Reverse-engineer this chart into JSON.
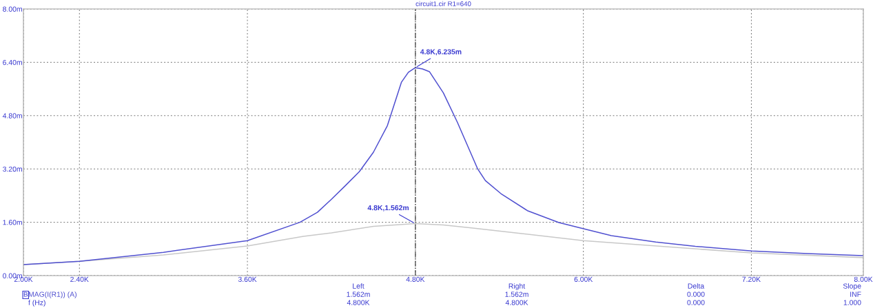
{
  "chart_data": {
    "type": "line",
    "title": "circuit1.cir R1=640",
    "xlabel": "f (Hz)",
    "xlim": [
      2000,
      8000
    ],
    "xticks": [
      {
        "value": 2000,
        "label": "2.00K"
      },
      {
        "value": 2400,
        "label": "2.40K"
      },
      {
        "value": 3600,
        "label": "3.60K"
      },
      {
        "value": 4800,
        "label": "4.80K"
      },
      {
        "value": 6000,
        "label": "6.00K"
      },
      {
        "value": 7200,
        "label": "7.20K"
      },
      {
        "value": 8000,
        "label": "8.00K"
      }
    ],
    "ylim": [
      0,
      8
    ],
    "yticks": [
      {
        "value": 0,
        "label": "0.00m"
      },
      {
        "value": 1.6,
        "label": "1.60m"
      },
      {
        "value": 3.2,
        "label": "3.20m"
      },
      {
        "value": 4.8,
        "label": "4.80m"
      },
      {
        "value": 6.4,
        "label": "6.40m"
      },
      {
        "value": 8,
        "label": "8.00m"
      }
    ],
    "grid": true,
    "line_style": "solid",
    "marker": "none",
    "series": [
      {
        "name": null,
        "color": "#c8c8c8",
        "x": [
          2000,
          2400,
          3000,
          3600,
          4000,
          4200,
          4500,
          4800,
          5000,
          5200,
          5560,
          6000,
          7200,
          8000
        ],
        "values": [
          0.33,
          0.43,
          0.62,
          0.89,
          1.18,
          1.28,
          1.48,
          1.56,
          1.52,
          1.43,
          1.26,
          1.05,
          0.68,
          0.54
        ]
      },
      {
        "name": "MAG(I(R1)) (A)",
        "color": "#5050d0",
        "x": [
          2000,
          2400,
          3000,
          3600,
          3975,
          4100,
          4200,
          4300,
          4400,
          4500,
          4600,
          4700,
          4750,
          4800,
          4850,
          4900,
          5000,
          5100,
          5245,
          5300,
          5417,
          5600,
          5825,
          5997,
          6200,
          6517,
          6800,
          7204,
          7600,
          7995
        ],
        "values": [
          0.33,
          0.43,
          0.7,
          1.05,
          1.6,
          1.9,
          2.29,
          2.7,
          3.12,
          3.7,
          4.5,
          5.8,
          6.1,
          6.24,
          6.2,
          6.12,
          5.48,
          4.6,
          3.2,
          2.85,
          2.44,
          1.95,
          1.59,
          1.41,
          1.2,
          1.01,
          0.88,
          0.74,
          0.66,
          0.6
        ]
      }
    ],
    "ref_lines": [
      {
        "axis": "x",
        "value": 4800,
        "color": "#404040",
        "line_style": "dashdot"
      }
    ],
    "annotations": [
      {
        "text": "4.8K,6.235m",
        "x": 4800,
        "y": 6.24
      },
      {
        "text": "4.8K,1.562m",
        "x": 4800,
        "y": 1.56
      },
      "B",
      "Left",
      "1.562m",
      "4.800K",
      "Right",
      "1.562m",
      "4.800K",
      "Delta",
      "0.000",
      "0.000",
      "Slope",
      "INF",
      "1.000"
    ]
  }
}
